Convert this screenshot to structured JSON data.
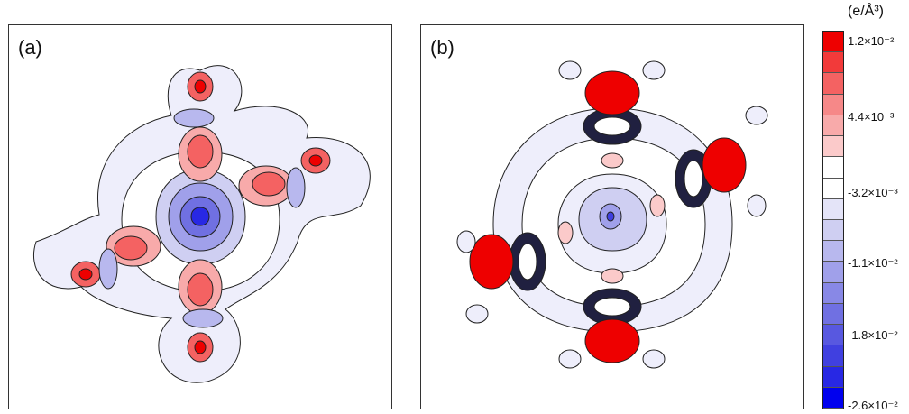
{
  "panels": {
    "a": {
      "label": "(a)"
    },
    "b": {
      "label": "(b)"
    }
  },
  "colorbar": {
    "unit_label": "(e/Å³)",
    "tick_labels": [
      "1.2×10⁻²",
      "4.4×10⁻³",
      "-3.2×10⁻³",
      "-1.1×10⁻²",
      "-1.8×10⁻²",
      "-2.6×10⁻²"
    ],
    "colors": [
      "#ee0000",
      "#f23a3a",
      "#f46262",
      "#f68888",
      "#f8aaaa",
      "#fbcaca",
      "#ffffff",
      "#ffffff",
      "#e4e4f8",
      "#cfcff2",
      "#b8b8ee",
      "#a0a0ea",
      "#8888e6",
      "#7070e2",
      "#5858e0",
      "#4040e0",
      "#2828e4",
      "#0000ee"
    ]
  }
}
